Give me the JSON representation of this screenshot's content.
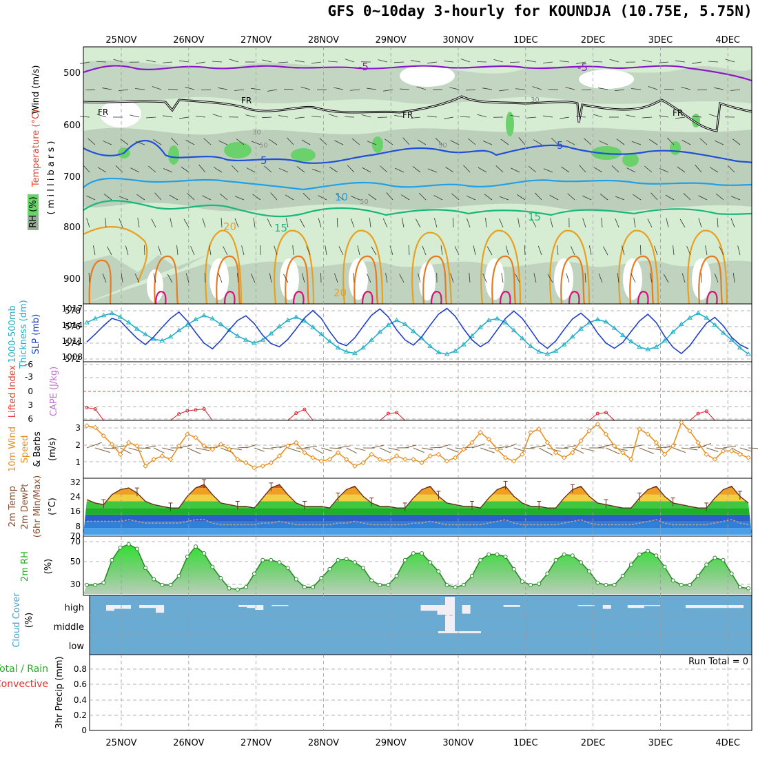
{
  "title": "GFS 0~10day 3-hourly for KOUNDJA (10.75E, 5.75N)",
  "dates": [
    "25NOV",
    "26NOV",
    "27NOV",
    "28NOV",
    "29NOV",
    "30NOV",
    "1DEC",
    "2DEC",
    "3DEC",
    "4DEC"
  ],
  "colors": {
    "rh_fill": "#d6ecd3",
    "rh_mid": "#bccfbb",
    "rh_dark": "#97ac96",
    "rh_green": "#6bd26b",
    "temp_purple": "#8a18c8",
    "temp_blue1": "#1f4fd8",
    "temp_blue2": "#1fa0e8",
    "temp_teal": "#1ab77c",
    "temp_orange1": "#e8a020",
    "temp_orange2": "#e87b20",
    "temp_magenta": "#d8107a",
    "thickness": "#22b0c8",
    "slp": "#1f3fc8",
    "lifted": "#d8202a",
    "wind": "#e89020",
    "cloud_bg": "#6aabd4",
    "cloud_white": "#f2eef4",
    "precip_green": "#20b020"
  },
  "panels": {
    "upper": {
      "ylabel_wind": "Wind (m/s)",
      "ylabel_temp": "Temperature (°C)",
      "ylabel_rh": "RH (%)",
      "ylabel_units": "( m i l l i b a r s )",
      "yticks": [
        "500",
        "600",
        "700",
        "800",
        "900"
      ],
      "contour_labels": {
        "purple": "-5",
        "purple2": "-5",
        "fr": "FR",
        "fr2": "FR",
        "fr3": "FR",
        "fr4": "FR",
        "blue": "5",
        "blue2": "5",
        "lightblue": "10",
        "teal": "15",
        "teal2": "15",
        "orange": "20",
        "orange2": "20",
        "rh30": "30",
        "rh30b": "30",
        "rh50": "50",
        "rh50b": "50",
        "rh50c": "50"
      }
    },
    "slp": {
      "ylabel1": "1000-500mb",
      "ylabel2": "Thickness (dm)",
      "ylabel3": "SLP (mb)",
      "left_ticks": [
        "578",
        "576",
        "574",
        "572"
      ],
      "right_ticks": [
        "1017",
        "1014",
        "1011",
        "1008"
      ]
    },
    "cape": {
      "ylabel1": "Lifted Index",
      "ylabel2": "CAPE (J/kg)",
      "ticks": [
        "-6",
        "-3",
        "0",
        "3",
        "6"
      ]
    },
    "wind10": {
      "ylabel1": "10m Wind",
      "ylabel2": "Speed",
      "ylabel3": "& Barbs",
      "ylabel4": "(m/s)",
      "ticks": [
        "3",
        "2",
        "1"
      ]
    },
    "temp2m": {
      "ylabel1": "2m Temp",
      "ylabel2": "2m DewPt",
      "ylabel3": "(6hr Min/Max)",
      "ylabel4": "(°C)",
      "ticks": [
        "32",
        "24",
        "16",
        "8"
      ],
      "bottom_tick": "70"
    },
    "rh2m": {
      "ylabel1": "2m RH",
      "ylabel2": "(%)",
      "ticks": [
        "70",
        "50",
        "30"
      ]
    },
    "cloud": {
      "ylabel1": "Cloud Cover",
      "ylabel2": "(%)",
      "levels": [
        "high",
        "middle",
        "low"
      ]
    },
    "precip": {
      "ylabel1": "Total / Rain",
      "ylabel2": "Convective",
      "ylabel3": "3hr Precip (mm)",
      "ticks": [
        "0.8",
        "0.6",
        "0.4",
        "0.2",
        "0"
      ],
      "run_total": "Run Total = 0"
    }
  },
  "chart_data": [
    {
      "type": "line",
      "title": "1000-500mb Thickness (dm)",
      "ylim": [
        572,
        579
      ],
      "x_steps": 80,
      "values": [
        576.8,
        577.3,
        577.7,
        578.0,
        577.5,
        576.8,
        576.0,
        575.3,
        574.7,
        574.5,
        575.0,
        575.8,
        576.5,
        577.2,
        577.7,
        577.3,
        576.6,
        575.8,
        575.1,
        574.6,
        574.2,
        574.6,
        575.4,
        576.3,
        577.1,
        577.5,
        577.0,
        576.2,
        575.3,
        574.4,
        573.6,
        573.1,
        572.9,
        573.6,
        574.6,
        575.6,
        576.5,
        577.1,
        576.6,
        575.7,
        574.8,
        573.8,
        573.0,
        572.8,
        573.2,
        574.0,
        575.1,
        576.2,
        577.1,
        577.3,
        576.8,
        575.8,
        574.8,
        573.8,
        573.1,
        572.8,
        573.2,
        574.0,
        575.0,
        576.0,
        576.8,
        577.2,
        576.9,
        576.1,
        575.2,
        574.4,
        573.7,
        573.4,
        573.7,
        574.5,
        575.6,
        576.6,
        577.4,
        578.0,
        577.4,
        576.5,
        575.5,
        574.6,
        573.6,
        572.8
      ]
    },
    {
      "type": "line",
      "title": "SLP (mb)",
      "ylim": [
        1007,
        1017.5
      ],
      "x_steps": 80,
      "values": [
        1010.5,
        1012.0,
        1013.6,
        1015.0,
        1014.5,
        1012.8,
        1011.2,
        1010.0,
        1011.5,
        1013.3,
        1015.0,
        1016.2,
        1014.5,
        1012.3,
        1010.3,
        1009.2,
        1010.8,
        1012.8,
        1014.6,
        1015.5,
        1014.0,
        1011.8,
        1010.2,
        1009.6,
        1011.0,
        1013.0,
        1015.1,
        1016.5,
        1015.0,
        1012.5,
        1010.4,
        1009.8,
        1011.3,
        1013.5,
        1015.6,
        1016.8,
        1015.3,
        1012.8,
        1010.9,
        1009.9,
        1011.5,
        1013.7,
        1015.8,
        1016.9,
        1015.4,
        1013.0,
        1010.9,
        1009.6,
        1010.6,
        1012.8,
        1015.0,
        1016.4,
        1015.0,
        1012.8,
        1010.5,
        1009.3,
        1010.7,
        1012.9,
        1014.9,
        1016.0,
        1014.6,
        1012.2,
        1010.3,
        1009.3,
        1010.4,
        1012.5,
        1014.5,
        1015.8,
        1014.2,
        1011.6,
        1009.5,
        1008.3,
        1009.8,
        1012.0,
        1014.1,
        1015.2,
        1013.6,
        1011.4,
        1010.0,
        1009.2
      ]
    },
    {
      "type": "line",
      "title": "Lifted Index",
      "ylim": [
        -6,
        6
      ],
      "x_steps": 80,
      "values": [
        3.5,
        3.8,
        6.3,
        6.3,
        6.3,
        6.3,
        6.3,
        6.3,
        6.3,
        6.3,
        6.3,
        4.9,
        4.2,
        4.0,
        3.8,
        6.3,
        6.3,
        6.3,
        6.3,
        6.3,
        6.3,
        6.3,
        6.3,
        6.3,
        6.3,
        4.7,
        3.9,
        6.3,
        6.3,
        6.3,
        6.3,
        6.3,
        6.3,
        6.3,
        6.3,
        6.3,
        4.8,
        4.6,
        6.3,
        6.3,
        6.3,
        6.3,
        6.3,
        6.3,
        6.3,
        6.3,
        6.3,
        6.3,
        6.3,
        6.3,
        6.3,
        6.3,
        6.3,
        6.3,
        6.3,
        6.3,
        6.3,
        6.3,
        6.3,
        6.3,
        6.3,
        4.8,
        4.6,
        6.3,
        6.3,
        6.3,
        6.3,
        6.3,
        6.3,
        6.3,
        6.3,
        6.3,
        6.3,
        4.8,
        4.3,
        6.3,
        6.3,
        6.3,
        6.3,
        6.3
      ]
    },
    {
      "type": "line",
      "title": "10m Wind Speed (m/s)",
      "ylim": [
        0,
        3.2
      ],
      "x_steps": 80,
      "values": [
        3.0,
        2.9,
        2.4,
        1.9,
        1.3,
        2.0,
        1.8,
        0.6,
        1.0,
        1.2,
        1.0,
        1.8,
        2.5,
        2.3,
        1.8,
        1.6,
        1.9,
        1.6,
        1.0,
        0.8,
        0.5,
        0.6,
        0.8,
        1.2,
        1.8,
        2.0,
        1.4,
        1.1,
        0.9,
        1.0,
        1.4,
        1.0,
        0.6,
        0.8,
        1.3,
        1.0,
        0.9,
        1.2,
        1.0,
        1.0,
        0.8,
        1.2,
        1.3,
        0.9,
        1.1,
        1.6,
        2.0,
        2.6,
        2.2,
        1.6,
        1.1,
        0.9,
        1.3,
        2.6,
        2.8,
        2.0,
        1.4,
        1.1,
        1.4,
        2.1,
        2.7,
        3.1,
        2.5,
        1.8,
        1.4,
        1.0,
        2.8,
        2.5,
        2.0,
        1.3,
        1.8,
        3.2,
        2.7,
        2.0,
        1.3,
        1.0,
        1.5,
        1.5,
        1.3,
        1.1
      ]
    },
    {
      "type": "area",
      "title": "2m Temp (°C)",
      "ylim": [
        0,
        33
      ],
      "x_steps": 80,
      "values": [
        21,
        19,
        18,
        24,
        27,
        28,
        25,
        20,
        18,
        17,
        16,
        16,
        23,
        28,
        30,
        24,
        19,
        18,
        17,
        17,
        16,
        22,
        28,
        30,
        24,
        19,
        17,
        17,
        17,
        16,
        22,
        27,
        29,
        23,
        19,
        17,
        17,
        16,
        16,
        22,
        27,
        29,
        23,
        19,
        18,
        17,
        17,
        16,
        22,
        27,
        29,
        23,
        19,
        17,
        17,
        16,
        16,
        22,
        27,
        29,
        23,
        19,
        18,
        17,
        16,
        16,
        22,
        27,
        29,
        23,
        19,
        18,
        17,
        16,
        16,
        22,
        27,
        29,
        23,
        19
      ]
    },
    {
      "type": "line",
      "title": "2m DewPt (°C)",
      "ylim": [
        0,
        33
      ],
      "x_steps": 80,
      "values": [
        8,
        8,
        8,
        8,
        8,
        9,
        8,
        7,
        7,
        7,
        7,
        7,
        8,
        9,
        9,
        7,
        6,
        6,
        6,
        6,
        6,
        7,
        7,
        8,
        7,
        6,
        6,
        6,
        6,
        6,
        7,
        7,
        8,
        7,
        6,
        6,
        6,
        6,
        6,
        7,
        7,
        8,
        7,
        6,
        6,
        6,
        6,
        6,
        7,
        8,
        9,
        7,
        6,
        6,
        6,
        6,
        6,
        7,
        8,
        9,
        7,
        6,
        6,
        6,
        6,
        6,
        7,
        8,
        9,
        7,
        6,
        6,
        6,
        6,
        6,
        7,
        8,
        9,
        7,
        6
      ]
    },
    {
      "type": "area",
      "title": "2m RH (%)",
      "ylim": [
        22,
        72
      ],
      "x_steps": 80,
      "values": [
        30,
        30,
        32,
        52,
        63,
        66,
        62,
        45,
        35,
        30,
        30,
        38,
        55,
        64,
        58,
        46,
        36,
        27,
        26,
        28,
        40,
        52,
        52,
        50,
        45,
        35,
        28,
        28,
        36,
        44,
        52,
        53,
        50,
        45,
        34,
        30,
        30,
        38,
        52,
        58,
        58,
        50,
        42,
        30,
        28,
        30,
        38,
        52,
        57,
        57,
        55,
        44,
        33,
        30,
        31,
        40,
        52,
        57,
        56,
        50,
        42,
        32,
        30,
        30,
        38,
        48,
        57,
        60,
        56,
        46,
        34,
        30,
        30,
        38,
        48,
        54,
        52,
        40,
        28,
        27
      ]
    },
    {
      "type": "bar",
      "title": "Cloud Cover High (%)",
      "ylim": [
        0,
        100
      ],
      "x_steps": 80,
      "values": [
        0,
        0,
        60,
        40,
        40,
        0,
        30,
        30,
        80,
        0,
        0,
        0,
        0,
        0,
        0,
        0,
        0,
        0,
        20,
        30,
        50,
        0,
        10,
        10,
        0,
        0,
        0,
        0,
        0,
        0,
        0,
        0,
        0,
        0,
        0,
        0,
        0,
        0,
        0,
        0,
        60,
        60,
        100,
        100,
        0,
        90,
        0,
        0,
        0,
        0,
        20,
        20,
        0,
        0,
        0,
        0,
        0,
        0,
        0,
        10,
        10,
        0,
        40,
        0,
        0,
        30,
        30,
        10,
        10,
        0,
        0,
        0,
        30,
        30,
        30,
        30,
        30,
        30,
        30,
        0
      ]
    },
    {
      "type": "bar",
      "title": "3hr Precip (mm)",
      "ylim": [
        0,
        1
      ],
      "x_steps": 80,
      "values": [
        0,
        0,
        0,
        0,
        0,
        0,
        0,
        0,
        0,
        0,
        0,
        0,
        0,
        0,
        0,
        0,
        0,
        0,
        0,
        0,
        0,
        0,
        0,
        0,
        0,
        0,
        0,
        0,
        0,
        0,
        0,
        0,
        0,
        0,
        0,
        0,
        0,
        0,
        0,
        0,
        0,
        0,
        0,
        0,
        0,
        0,
        0,
        0,
        0,
        0,
        0,
        0,
        0,
        0,
        0,
        0,
        0,
        0,
        0,
        0,
        0,
        0,
        0,
        0,
        0,
        0,
        0,
        0,
        0,
        0,
        0,
        0,
        0,
        0,
        0,
        0,
        0,
        0,
        0,
        0
      ]
    }
  ]
}
